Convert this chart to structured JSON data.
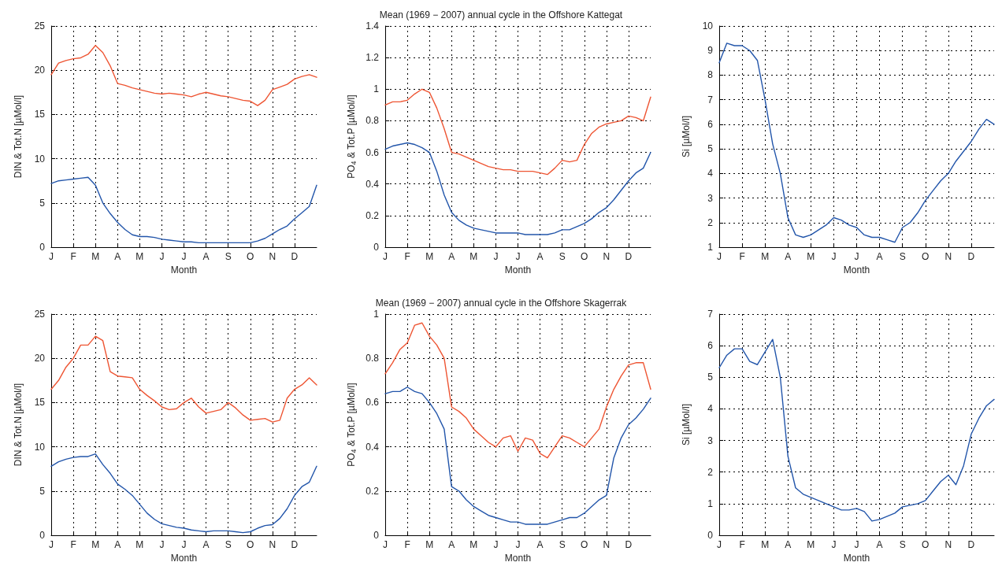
{
  "chart_data": [
    {
      "type": "line",
      "xlabel": "Month",
      "ylabel": "DIN & Tot.N [µMol/l]",
      "ylim": [
        0,
        25
      ],
      "yticks": [
        0,
        5,
        10,
        15,
        20,
        25
      ],
      "grid": true,
      "marker": "none",
      "line_style": "solid",
      "categories": [
        "J",
        null,
        null,
        "F",
        null,
        null,
        "M",
        null,
        null,
        "A",
        null,
        null,
        "M",
        null,
        null,
        "J",
        null,
        null,
        "J",
        null,
        null,
        "A",
        null,
        null,
        "S",
        null,
        null,
        "O",
        null,
        null,
        "N",
        null,
        null,
        "D",
        null,
        null,
        null
      ],
      "series": [
        {
          "color": "#ee5533",
          "values": [
            19.5,
            20.8,
            21.1,
            21.3,
            21.4,
            21.8,
            22.8,
            22.0,
            20.5,
            18.5,
            18.3,
            18.0,
            17.8,
            17.6,
            17.4,
            17.3,
            17.4,
            17.3,
            17.2,
            17.0,
            17.3,
            17.5,
            17.3,
            17.1,
            17.0,
            16.8,
            16.6,
            16.5,
            16.0,
            16.6,
            17.8,
            18.1,
            18.4,
            19.0,
            19.3,
            19.5,
            19.2
          ]
        },
        {
          "color": "#2255aa",
          "values": [
            7.2,
            7.5,
            7.6,
            7.7,
            7.8,
            7.9,
            7.0,
            5.0,
            3.8,
            2.8,
            2.0,
            1.4,
            1.2,
            1.2,
            1.1,
            0.9,
            0.8,
            0.7,
            0.6,
            0.6,
            0.5,
            0.5,
            0.5,
            0.5,
            0.5,
            0.5,
            0.5,
            0.5,
            0.7,
            1.0,
            1.5,
            2.0,
            2.4,
            3.2,
            3.9,
            4.6,
            7.0
          ]
        }
      ]
    },
    {
      "type": "line",
      "title": "Mean (1969 − 2007) annual cycle in the Offshore Kattegat",
      "xlabel": "Month",
      "ylabel": "PO$_{4}$ & Tot.P [µMol/l]",
      "ylim": [
        0,
        1.4
      ],
      "yticks": [
        0,
        0.2,
        0.4,
        0.6,
        0.8,
        1,
        1.2,
        1.4
      ],
      "grid": true,
      "marker": "none",
      "line_style": "solid",
      "categories": [
        "J",
        null,
        null,
        "F",
        null,
        null,
        "M",
        null,
        null,
        "A",
        null,
        null,
        "M",
        null,
        null,
        "J",
        null,
        null,
        "J",
        null,
        null,
        "A",
        null,
        null,
        "S",
        null,
        null,
        "O",
        null,
        null,
        "N",
        null,
        null,
        "D",
        null,
        null,
        null
      ],
      "series": [
        {
          "color": "#ee5533",
          "values": [
            0.9,
            0.92,
            0.92,
            0.93,
            0.97,
            1.0,
            0.98,
            0.88,
            0.75,
            0.6,
            0.59,
            0.57,
            0.55,
            0.53,
            0.51,
            0.5,
            0.49,
            0.49,
            0.48,
            0.48,
            0.48,
            0.47,
            0.46,
            0.5,
            0.55,
            0.54,
            0.55,
            0.65,
            0.72,
            0.76,
            0.78,
            0.79,
            0.8,
            0.83,
            0.82,
            0.8,
            0.95
          ]
        },
        {
          "color": "#2255aa",
          "values": [
            0.62,
            0.64,
            0.65,
            0.66,
            0.65,
            0.63,
            0.6,
            0.48,
            0.33,
            0.22,
            0.17,
            0.14,
            0.12,
            0.11,
            0.1,
            0.09,
            0.09,
            0.09,
            0.09,
            0.08,
            0.08,
            0.08,
            0.08,
            0.09,
            0.11,
            0.11,
            0.13,
            0.15,
            0.18,
            0.22,
            0.25,
            0.3,
            0.36,
            0.42,
            0.47,
            0.5,
            0.6
          ]
        }
      ]
    },
    {
      "type": "line",
      "xlabel": "Month",
      "ylabel": "Si [µMol/l]",
      "ylim": [
        1,
        10
      ],
      "yticks": [
        1,
        2,
        3,
        4,
        5,
        6,
        7,
        8,
        9,
        10
      ],
      "grid": true,
      "marker": "none",
      "line_style": "solid",
      "categories": [
        "J",
        null,
        null,
        "F",
        null,
        null,
        "M",
        null,
        null,
        "A",
        null,
        null,
        "M",
        null,
        null,
        "J",
        null,
        null,
        "J",
        null,
        null,
        "A",
        null,
        null,
        "S",
        null,
        null,
        "O",
        null,
        null,
        "N",
        null,
        null,
        "D",
        null,
        null,
        null
      ],
      "series": [
        {
          "color": "#2255aa",
          "values": [
            8.5,
            9.3,
            9.2,
            9.2,
            9.0,
            8.6,
            7.0,
            5.2,
            4.0,
            2.2,
            1.5,
            1.4,
            1.5,
            1.7,
            1.9,
            2.2,
            2.1,
            1.9,
            1.8,
            1.5,
            1.4,
            1.4,
            1.3,
            1.2,
            1.8,
            2.0,
            2.4,
            2.9,
            3.3,
            3.7,
            4.0,
            4.5,
            4.9,
            5.3,
            5.8,
            6.2,
            6.0
          ]
        }
      ]
    },
    {
      "type": "line",
      "xlabel": "Month",
      "ylabel": "DIN & Tot.N [µMol/l]",
      "ylim": [
        0,
        25
      ],
      "yticks": [
        0,
        5,
        10,
        15,
        20,
        25
      ],
      "grid": true,
      "marker": "none",
      "line_style": "solid",
      "categories": [
        "J",
        null,
        null,
        "F",
        null,
        null,
        "M",
        null,
        null,
        "A",
        null,
        null,
        "M",
        null,
        null,
        "J",
        null,
        null,
        "J",
        null,
        null,
        "A",
        null,
        null,
        "S",
        null,
        null,
        "O",
        null,
        null,
        "N",
        null,
        null,
        "D",
        null,
        null,
        null
      ],
      "series": [
        {
          "color": "#ee5533",
          "values": [
            16.5,
            17.5,
            19,
            20,
            21.5,
            21.5,
            22.5,
            22,
            18.5,
            18,
            17.9,
            17.8,
            16.5,
            15.8,
            15.2,
            14.5,
            14.2,
            14.3,
            15.0,
            15.5,
            14.5,
            13.8,
            14.0,
            14.2,
            15.0,
            14.4,
            13.6,
            13.0,
            13.1,
            13.2,
            12.8,
            13.0,
            15.5,
            16.5,
            17.0,
            17.8,
            17
          ]
        },
        {
          "color": "#2255aa",
          "values": [
            7.8,
            8.3,
            8.6,
            8.8,
            8.9,
            8.9,
            9.2,
            8.0,
            7.0,
            5.8,
            5.2,
            4.5,
            3.5,
            2.5,
            1.8,
            1.3,
            1.1,
            0.9,
            0.8,
            0.6,
            0.5,
            0.4,
            0.5,
            0.5,
            0.5,
            0.4,
            0.3,
            0.4,
            0.8,
            1.1,
            1.2,
            1.9,
            3.0,
            4.5,
            5.5,
            6.0,
            7.8
          ]
        }
      ]
    },
    {
      "type": "line",
      "title": "Mean (1969 − 2007) annual cycle in the Offshore Skagerrak",
      "xlabel": "Month",
      "ylabel": "PO$_{4}$ & Tot.P [µMol/l]",
      "ylim": [
        0,
        1
      ],
      "yticks": [
        0,
        0.2,
        0.4,
        0.6,
        0.8,
        1
      ],
      "grid": true,
      "marker": "none",
      "line_style": "solid",
      "categories": [
        "J",
        null,
        null,
        "F",
        null,
        null,
        "M",
        null,
        null,
        "A",
        null,
        null,
        "M",
        null,
        null,
        "J",
        null,
        null,
        "J",
        null,
        null,
        "A",
        null,
        null,
        "S",
        null,
        null,
        "O",
        null,
        null,
        "N",
        null,
        null,
        "D",
        null,
        null,
        null
      ],
      "series": [
        {
          "color": "#ee5533",
          "values": [
            0.73,
            0.78,
            0.84,
            0.87,
            0.95,
            0.96,
            0.9,
            0.86,
            0.8,
            0.58,
            0.56,
            0.53,
            0.48,
            0.45,
            0.42,
            0.4,
            0.44,
            0.45,
            0.38,
            0.44,
            0.43,
            0.37,
            0.35,
            0.4,
            0.45,
            0.44,
            0.42,
            0.4,
            0.44,
            0.48,
            0.58,
            0.66,
            0.72,
            0.77,
            0.78,
            0.78,
            0.66
          ]
        },
        {
          "color": "#2255aa",
          "values": [
            0.64,
            0.65,
            0.65,
            0.67,
            0.65,
            0.64,
            0.6,
            0.55,
            0.48,
            0.22,
            0.2,
            0.16,
            0.13,
            0.11,
            0.09,
            0.08,
            0.07,
            0.06,
            0.06,
            0.05,
            0.05,
            0.05,
            0.05,
            0.06,
            0.07,
            0.08,
            0.08,
            0.1,
            0.13,
            0.16,
            0.18,
            0.35,
            0.44,
            0.5,
            0.53,
            0.57,
            0.62
          ]
        }
      ]
    },
    {
      "type": "line",
      "xlabel": "Month",
      "ylabel": "Si [µMol/l]",
      "ylim": [
        0,
        7
      ],
      "yticks": [
        0,
        1,
        2,
        3,
        4,
        5,
        6,
        7
      ],
      "grid": true,
      "marker": "none",
      "line_style": "solid",
      "categories": [
        "J",
        null,
        null,
        "F",
        null,
        null,
        "M",
        null,
        null,
        "A",
        null,
        null,
        "M",
        null,
        null,
        "J",
        null,
        null,
        "J",
        null,
        null,
        "A",
        null,
        null,
        "S",
        null,
        null,
        "O",
        null,
        null,
        "N",
        null,
        null,
        "D",
        null,
        null,
        null
      ],
      "series": [
        {
          "color": "#2255aa",
          "values": [
            5.3,
            5.7,
            5.9,
            5.9,
            5.5,
            5.4,
            5.8,
            6.2,
            5.0,
            2.5,
            1.5,
            1.3,
            1.2,
            1.1,
            1.0,
            0.9,
            0.8,
            0.8,
            0.85,
            0.75,
            0.45,
            0.5,
            0.6,
            0.7,
            0.9,
            0.95,
            1.0,
            1.1,
            1.4,
            1.7,
            1.9,
            1.6,
            2.2,
            3.2,
            3.7,
            4.1,
            4.3
          ]
        }
      ]
    }
  ]
}
